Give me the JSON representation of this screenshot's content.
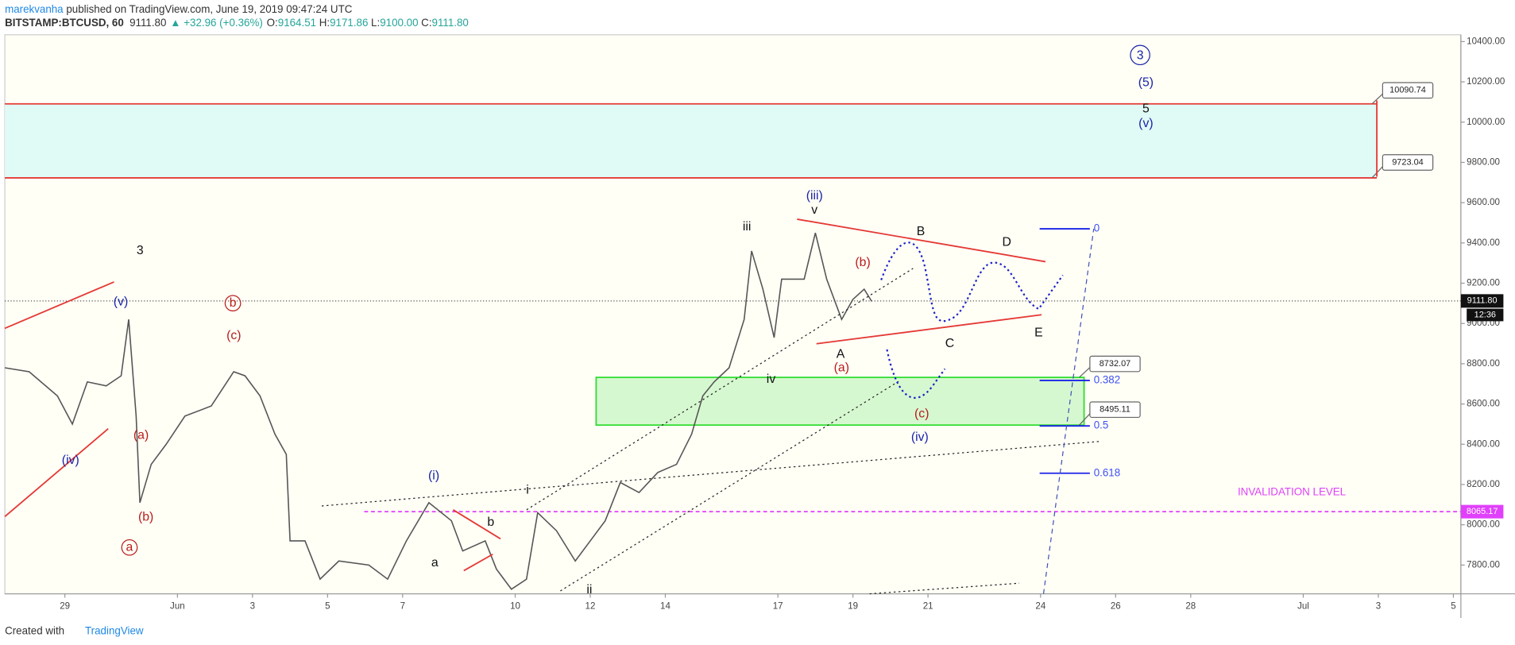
{
  "header": {
    "author": "marekvanha",
    "published": " published on TradingView.com, June 19, 2019 09:47:24 UTC",
    "symbol": "BITSTAMP:BTCUSD, 60",
    "price": "9111.80",
    "change": "▲ +32.96 (+0.36%)",
    "ohlc": [
      {
        "key": "O:",
        "value": "9164.51"
      },
      {
        "key": "H:",
        "value": "9171.86"
      },
      {
        "key": "L:",
        "value": "9100.00"
      },
      {
        "key": "C:",
        "value": "9111.80"
      }
    ]
  },
  "footer": {
    "text": "Created with",
    "brand": "TradingView"
  },
  "chart_data": {
    "type": "line",
    "series": [
      {
        "name": "BTCUSD",
        "color": "#555555",
        "x": [
          -1.6,
          -0.95,
          -0.2,
          0.2,
          0.6,
          1.1,
          1.5,
          1.7,
          1.9,
          2.0,
          2.3,
          2.7,
          3.2,
          3.9,
          4.5,
          4.8,
          5.2,
          5.6,
          5.9,
          6.0,
          6.4,
          6.8,
          7.3,
          8.1,
          8.6,
          9.1,
          9.7,
          10.3,
          10.6,
          11.2,
          11.5,
          11.9,
          12.3,
          12.6,
          13.1,
          13.6,
          14.0,
          14.4,
          14.8,
          15.3,
          15.8,
          16.3,
          16.7,
          17.0,
          17.3,
          17.7,
          18.1,
          18.3,
          18.6,
          18.9,
          19.1,
          19.7,
          20.0,
          20.3,
          20.7,
          21.0,
          21.3,
          21.5
        ],
        "values": [
          8780,
          8760,
          8640,
          8500,
          8710,
          8690,
          8740,
          9020,
          8540,
          8110,
          8300,
          8400,
          8540,
          8590,
          8760,
          8740,
          8640,
          8450,
          8350,
          7920,
          7920,
          7730,
          7820,
          7800,
          7730,
          7920,
          8110,
          8020,
          7870,
          7920,
          7780,
          7680,
          7730,
          8060,
          7970,
          7820,
          7920,
          8020,
          8210,
          8160,
          8260,
          8300,
          8450,
          8640,
          8710,
          8780,
          9020,
          9360,
          9170,
          8930,
          9220,
          9220,
          9450,
          9220,
          9020,
          9120,
          9170,
          9110
        ]
      }
    ],
    "xlim": [
      -1.6,
      37.2
    ],
    "ylim": [
      7657,
      10434
    ],
    "xticks": [
      {
        "value": 0,
        "label": "29"
      },
      {
        "value": 3,
        "label": "Jun"
      },
      {
        "value": 5,
        "label": "3"
      },
      {
        "value": 7,
        "label": "5"
      },
      {
        "value": 9,
        "label": "7"
      },
      {
        "value": 12,
        "label": "10"
      },
      {
        "value": 14,
        "label": "12"
      },
      {
        "value": 16,
        "label": "14"
      },
      {
        "value": 19,
        "label": "17"
      },
      {
        "value": 21,
        "label": "19"
      },
      {
        "value": 23,
        "label": "21"
      },
      {
        "value": 26,
        "label": "24"
      },
      {
        "value": 28,
        "label": "26"
      },
      {
        "value": 30,
        "label": "28"
      },
      {
        "value": 33,
        "label": "Jul"
      },
      {
        "value": 35,
        "label": "3"
      },
      {
        "value": 37,
        "label": "5"
      }
    ],
    "yticks": [
      {
        "value": 7800,
        "label": "7800.00"
      },
      {
        "value": 8000,
        "label": "8000.00"
      },
      {
        "value": 8200,
        "label": "8200.00"
      },
      {
        "value": 8400,
        "label": "8400.00"
      },
      {
        "value": 8600,
        "label": "8600.00"
      },
      {
        "value": 8800,
        "label": "8800.00"
      },
      {
        "value": 9000,
        "label": "9000.00"
      },
      {
        "value": 9200,
        "label": "9200.00"
      },
      {
        "value": 9400,
        "label": "9400.00"
      },
      {
        "value": 9600,
        "label": "9600.00"
      },
      {
        "value": 9800,
        "label": "9800.00"
      },
      {
        "value": 10000,
        "label": "10000.00"
      },
      {
        "value": 10200,
        "label": "10200.00"
      },
      {
        "value": 10400,
        "label": "10400.00"
      }
    ],
    "last_price": {
      "value": 9111.8,
      "label": "9111.80"
    },
    "countdown": "12:36",
    "invalidation": {
      "value": 8065.17,
      "text": "INVALIDATION LEVEL"
    },
    "zones": [
      {
        "high": 10090.74,
        "low": 9723.04,
        "color": "#e0faf5"
      },
      {
        "high": 8732.07,
        "low": 8495.11,
        "color": "#d6f8d0"
      }
    ],
    "fib": [
      {
        "label": "0",
        "price": 9470
      },
      {
        "label": "0.382",
        "price": 8717
      },
      {
        "label": "0.5",
        "price": 8491
      },
      {
        "label": "0.618",
        "price": 8256
      }
    ],
    "waves": [
      "3",
      "(v)",
      "b",
      "(c)",
      "(iv)",
      "(a)",
      "(b)",
      "a",
      "(i)",
      "i",
      "b",
      "a",
      "ii",
      "iii",
      "(iii)",
      "v",
      "iv",
      "(b)",
      "A",
      "(a)",
      "B",
      "D",
      "C",
      "E",
      "(c)",
      "(iv)",
      "3",
      "(5)",
      "5",
      "(v)"
    ]
  }
}
